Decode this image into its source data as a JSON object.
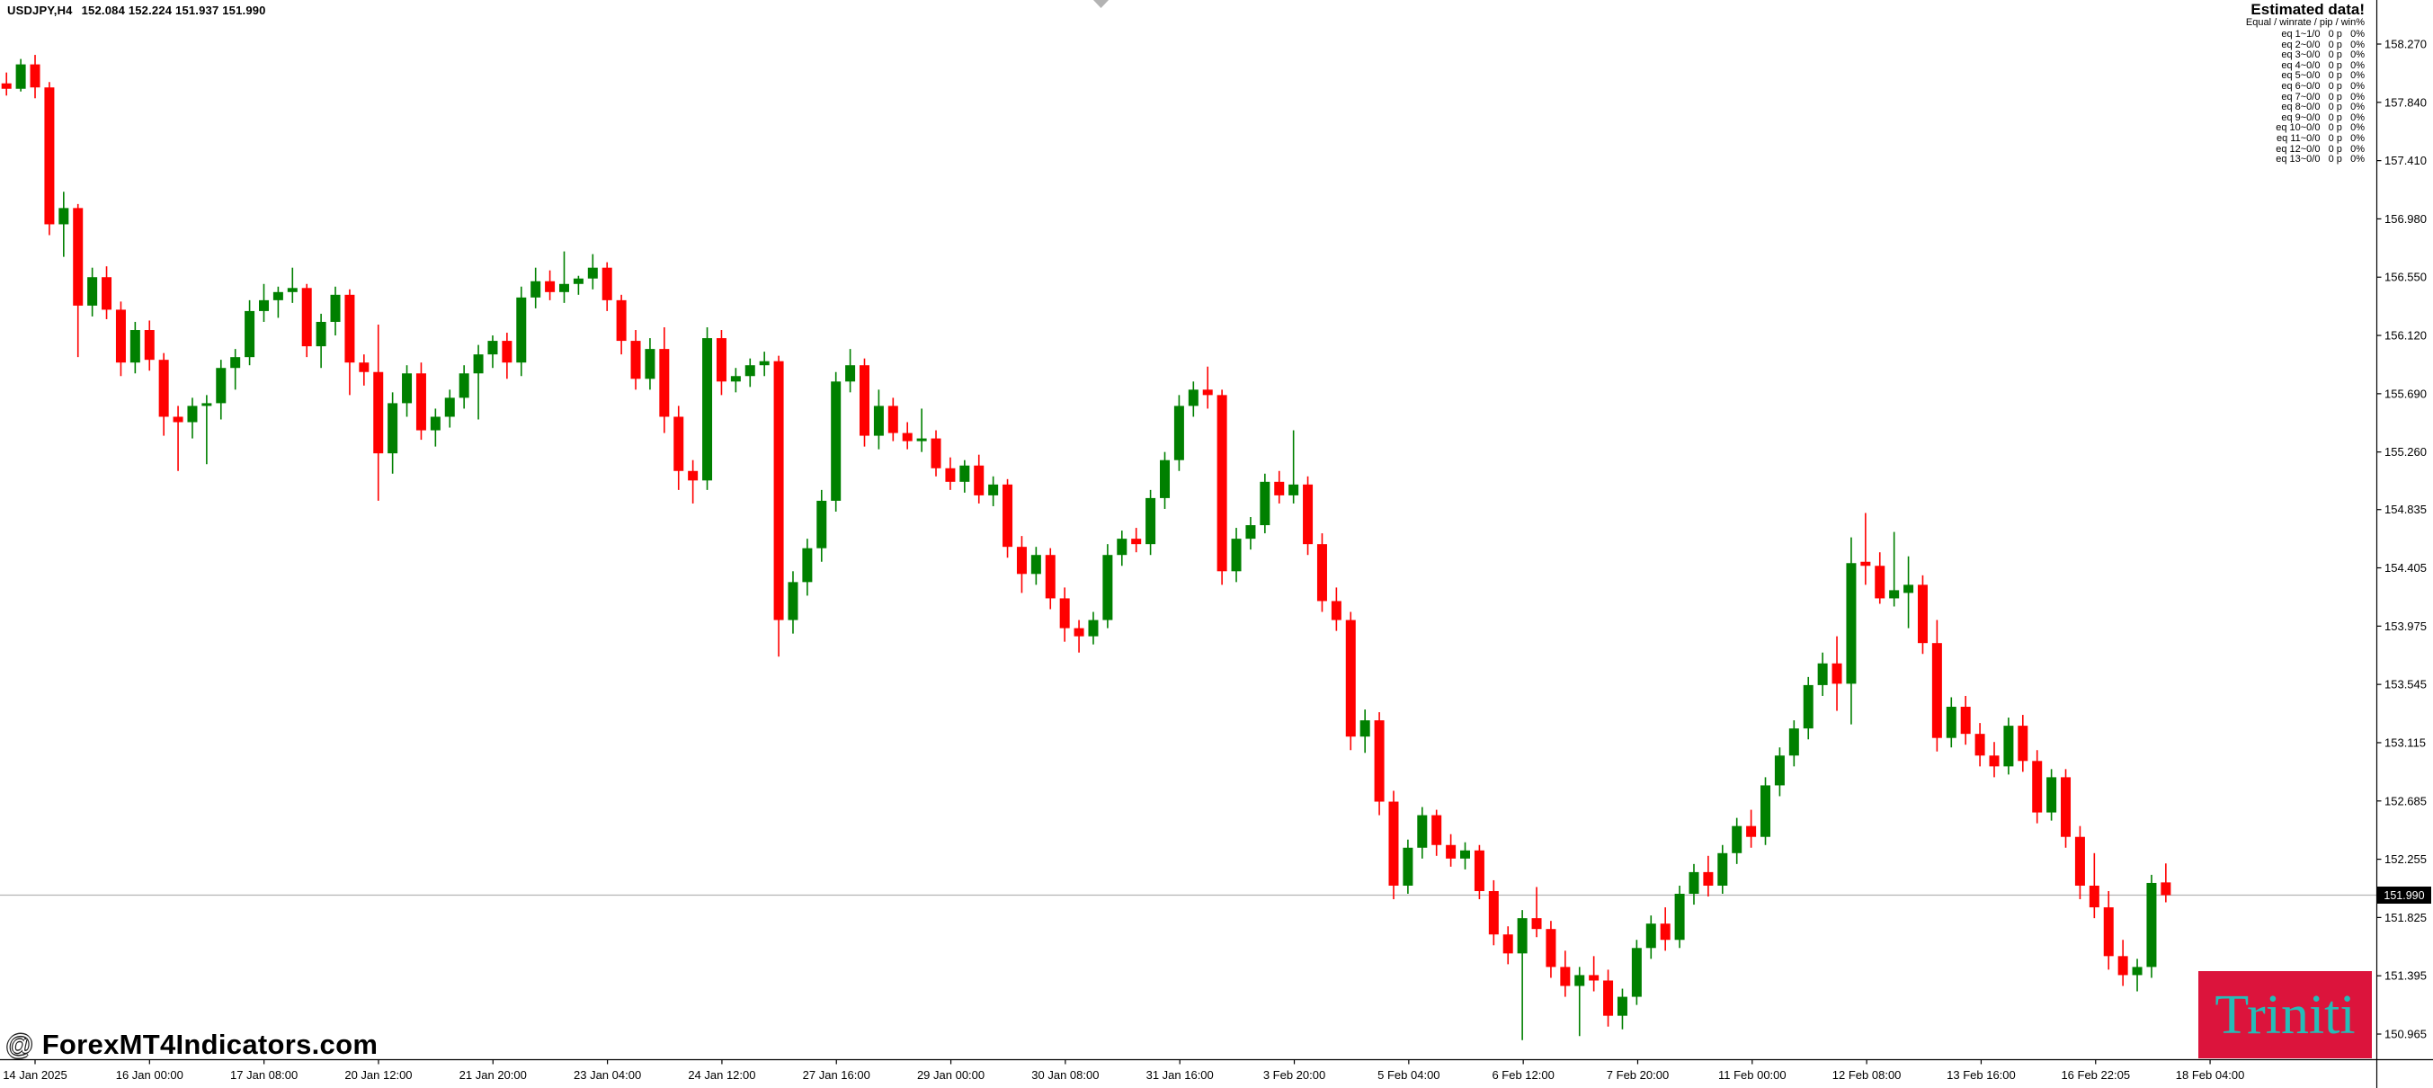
{
  "header": {
    "symbol": "USDJPY,H4",
    "quote": "152.084 152.224 151.937 151.990"
  },
  "estimated_panel": {
    "title": "Estimated data!",
    "subtitle": "Equal / winrate / pip / win%",
    "rows": [
      "eq 1~1/0   0 p   0%",
      "eq 2~0/0   0 p   0%",
      "eq 3~0/0   0 p   0%",
      "eq 4~0/0   0 p   0%",
      "eq 5~0/0   0 p   0%",
      "eq 6~0/0   0 p   0%",
      "eq 7~0/0   0 p   0%",
      "eq 8~0/0   0 p   0%",
      "eq 9~0/0   0 p   0%",
      "eq 10~0/0   0 p   0%",
      "eq 11~0/0   0 p   0%",
      "eq 12~0/0   0 p   0%",
      "eq 13~0/0   0 p   0%"
    ]
  },
  "price_axis": {
    "current": "151.990"
  },
  "watermark": {
    "at": "@ ",
    "text": "ForexMT4Indicators.com"
  },
  "logo": {
    "text": "Triniti",
    "bg": "#dc143c",
    "fg": "#25bdb8"
  },
  "chart_data": {
    "type": "candlestick",
    "title": "USDJPY H4 candlestick chart",
    "symbol": "USDJPY",
    "timeframe": "H4",
    "bid_price": 151.99,
    "current_bar": {
      "open": "152.084",
      "high": "152.224",
      "low": "151.937",
      "close": "151.990"
    },
    "price_axis_labels": [
      "158.270",
      "157.840",
      "157.410",
      "156.980",
      "156.550",
      "156.120",
      "155.690",
      "155.260",
      "154.835",
      "154.405",
      "153.975",
      "153.545",
      "153.115",
      "152.685",
      "152.255",
      "151.825",
      "151.395",
      "150.965"
    ],
    "time_axis_labels": [
      "14 Jan 2025",
      "16 Jan 00:00",
      "17 Jan 08:00",
      "20 Jan 12:00",
      "21 Jan 20:00",
      "23 Jan 04:00",
      "24 Jan 12:00",
      "27 Jan 16:00",
      "29 Jan 00:00",
      "30 Jan 08:00",
      "31 Jan 16:00",
      "3 Feb 20:00",
      "5 Feb 04:00",
      "6 Feb 12:00",
      "7 Feb 20:00",
      "11 Feb 00:00",
      "12 Feb 08:00",
      "13 Feb 16:00",
      "16 Feb 22:05",
      "18 Feb 04:00"
    ],
    "ylim": [
      150.78,
      158.6
    ],
    "grid": false,
    "colors": {
      "bull": "#008000",
      "bear": "#ff0000",
      "bid_line": "#b4b4b4",
      "axis": "#000000"
    },
    "candles": [
      [
        157.98,
        158.06,
        157.89,
        157.94
      ],
      [
        157.94,
        158.16,
        157.92,
        158.12
      ],
      [
        158.12,
        158.19,
        157.87,
        157.95
      ],
      [
        157.95,
        157.99,
        156.86,
        156.94
      ],
      [
        156.94,
        157.18,
        156.7,
        157.06
      ],
      [
        157.06,
        157.09,
        155.96,
        156.34
      ],
      [
        156.34,
        156.62,
        156.26,
        156.55
      ],
      [
        156.55,
        156.63,
        156.24,
        156.31
      ],
      [
        156.31,
        156.37,
        155.82,
        155.92
      ],
      [
        155.92,
        156.22,
        155.84,
        156.16
      ],
      [
        156.16,
        156.23,
        155.86,
        155.94
      ],
      [
        155.94,
        155.99,
        155.38,
        155.52
      ],
      [
        155.52,
        155.6,
        155.12,
        155.48
      ],
      [
        155.48,
        155.66,
        155.36,
        155.6
      ],
      [
        155.6,
        155.68,
        155.17,
        155.62
      ],
      [
        155.62,
        155.94,
        155.5,
        155.88
      ],
      [
        155.88,
        156.02,
        155.72,
        155.96
      ],
      [
        155.96,
        156.38,
        155.9,
        156.3
      ],
      [
        156.3,
        156.5,
        156.22,
        156.38
      ],
      [
        156.38,
        156.48,
        156.25,
        156.44
      ],
      [
        156.44,
        156.62,
        156.36,
        156.47
      ],
      [
        156.47,
        156.5,
        155.96,
        156.04
      ],
      [
        156.04,
        156.28,
        155.88,
        156.22
      ],
      [
        156.22,
        156.48,
        156.12,
        156.42
      ],
      [
        156.42,
        156.46,
        155.68,
        155.92
      ],
      [
        155.92,
        155.98,
        155.75,
        155.85
      ],
      [
        155.85,
        156.2,
        154.9,
        155.25
      ],
      [
        155.25,
        155.7,
        155.1,
        155.62
      ],
      [
        155.62,
        155.9,
        155.52,
        155.84
      ],
      [
        155.84,
        155.92,
        155.35,
        155.42
      ],
      [
        155.42,
        155.58,
        155.3,
        155.52
      ],
      [
        155.52,
        155.72,
        155.44,
        155.66
      ],
      [
        155.66,
        155.9,
        155.58,
        155.84
      ],
      [
        155.84,
        156.05,
        155.5,
        155.98
      ],
      [
        155.98,
        156.12,
        155.88,
        156.08
      ],
      [
        156.08,
        156.14,
        155.8,
        155.92
      ],
      [
        155.92,
        156.48,
        155.82,
        156.4
      ],
      [
        156.4,
        156.62,
        156.32,
        156.52
      ],
      [
        156.52,
        156.6,
        156.38,
        156.44
      ],
      [
        156.44,
        156.74,
        156.36,
        156.5
      ],
      [
        156.5,
        156.56,
        156.42,
        156.54
      ],
      [
        156.54,
        156.72,
        156.46,
        156.62
      ],
      [
        156.62,
        156.66,
        156.3,
        156.38
      ],
      [
        156.38,
        156.42,
        155.98,
        156.08
      ],
      [
        156.08,
        156.16,
        155.72,
        155.8
      ],
      [
        155.8,
        156.1,
        155.72,
        156.02
      ],
      [
        156.02,
        156.18,
        155.4,
        155.52
      ],
      [
        155.52,
        155.6,
        154.98,
        155.12
      ],
      [
        155.12,
        155.2,
        154.88,
        155.05
      ],
      [
        155.05,
        156.18,
        154.98,
        156.1
      ],
      [
        156.1,
        156.16,
        155.68,
        155.78
      ],
      [
        155.78,
        155.88,
        155.7,
        155.82
      ],
      [
        155.82,
        155.95,
        155.74,
        155.9
      ],
      [
        155.9,
        156.0,
        155.82,
        155.93
      ],
      [
        155.93,
        155.97,
        153.75,
        154.02
      ],
      [
        154.02,
        154.38,
        153.92,
        154.3
      ],
      [
        154.3,
        154.62,
        154.2,
        154.55
      ],
      [
        154.55,
        154.98,
        154.45,
        154.9
      ],
      [
        154.9,
        155.85,
        154.82,
        155.78
      ],
      [
        155.78,
        156.02,
        155.7,
        155.9
      ],
      [
        155.9,
        155.95,
        155.3,
        155.38
      ],
      [
        155.38,
        155.72,
        155.28,
        155.6
      ],
      [
        155.6,
        155.66,
        155.34,
        155.4
      ],
      [
        155.4,
        155.48,
        155.28,
        155.34
      ],
      [
        155.34,
        155.58,
        155.26,
        155.36
      ],
      [
        155.36,
        155.42,
        155.08,
        155.14
      ],
      [
        155.14,
        155.22,
        154.98,
        155.04
      ],
      [
        155.04,
        155.2,
        154.96,
        155.16
      ],
      [
        155.16,
        155.24,
        154.88,
        154.94
      ],
      [
        154.94,
        155.08,
        154.86,
        155.02
      ],
      [
        155.02,
        155.06,
        154.48,
        154.56
      ],
      [
        154.56,
        154.64,
        154.22,
        154.36
      ],
      [
        154.36,
        154.56,
        154.28,
        154.5
      ],
      [
        154.5,
        154.55,
        154.1,
        154.18
      ],
      [
        154.18,
        154.26,
        153.86,
        153.96
      ],
      [
        153.96,
        154.02,
        153.78,
        153.9
      ],
      [
        153.9,
        154.08,
        153.84,
        154.02
      ],
      [
        154.02,
        154.58,
        153.96,
        154.5
      ],
      [
        154.5,
        154.68,
        154.42,
        154.62
      ],
      [
        154.62,
        154.7,
        154.52,
        154.58
      ],
      [
        154.58,
        154.98,
        154.5,
        154.92
      ],
      [
        154.92,
        155.26,
        154.84,
        155.2
      ],
      [
        155.2,
        155.68,
        155.12,
        155.6
      ],
      [
        155.6,
        155.78,
        155.52,
        155.72
      ],
      [
        155.72,
        155.89,
        155.58,
        155.68
      ],
      [
        155.68,
        155.72,
        154.28,
        154.38
      ],
      [
        154.38,
        154.7,
        154.3,
        154.62
      ],
      [
        154.62,
        154.78,
        154.54,
        154.72
      ],
      [
        154.72,
        155.1,
        154.66,
        155.04
      ],
      [
        155.04,
        155.12,
        154.88,
        154.94
      ],
      [
        154.94,
        155.42,
        154.88,
        155.02
      ],
      [
        155.02,
        155.08,
        154.5,
        154.58
      ],
      [
        154.58,
        154.66,
        154.08,
        154.16
      ],
      [
        154.16,
        154.26,
        153.94,
        154.02
      ],
      [
        154.02,
        154.08,
        153.06,
        153.16
      ],
      [
        153.16,
        153.36,
        153.04,
        153.28
      ],
      [
        153.28,
        153.34,
        152.58,
        152.68
      ],
      [
        152.68,
        152.76,
        151.96,
        152.06
      ],
      [
        152.06,
        152.4,
        152.0,
        152.34
      ],
      [
        152.34,
        152.64,
        152.26,
        152.58
      ],
      [
        152.58,
        152.62,
        152.28,
        152.36
      ],
      [
        152.36,
        152.44,
        152.2,
        152.26
      ],
      [
        152.26,
        152.38,
        152.18,
        152.32
      ],
      [
        152.32,
        152.36,
        151.96,
        152.02
      ],
      [
        152.02,
        152.1,
        151.62,
        151.7
      ],
      [
        151.7,
        151.76,
        151.48,
        151.56
      ],
      [
        151.56,
        151.88,
        150.92,
        151.82
      ],
      [
        151.82,
        152.05,
        151.68,
        151.74
      ],
      [
        151.74,
        151.8,
        151.38,
        151.46
      ],
      [
        151.46,
        151.58,
        151.24,
        151.32
      ],
      [
        151.32,
        151.46,
        150.95,
        151.4
      ],
      [
        151.4,
        151.54,
        151.28,
        151.36
      ],
      [
        151.36,
        151.44,
        151.02,
        151.1
      ],
      [
        151.1,
        151.3,
        151.0,
        151.24
      ],
      [
        151.24,
        151.66,
        151.18,
        151.6
      ],
      [
        151.6,
        151.84,
        151.52,
        151.78
      ],
      [
        151.78,
        151.9,
        151.58,
        151.66
      ],
      [
        151.66,
        152.06,
        151.6,
        152.0
      ],
      [
        152.0,
        152.22,
        151.92,
        152.16
      ],
      [
        152.16,
        152.28,
        151.98,
        152.06
      ],
      [
        152.06,
        152.36,
        152.0,
        152.3
      ],
      [
        152.3,
        152.56,
        152.22,
        152.5
      ],
      [
        152.5,
        152.62,
        152.34,
        152.42
      ],
      [
        152.42,
        152.86,
        152.36,
        152.8
      ],
      [
        152.8,
        153.08,
        152.72,
        153.02
      ],
      [
        153.02,
        153.28,
        152.94,
        153.22
      ],
      [
        153.22,
        153.6,
        153.14,
        153.54
      ],
      [
        153.54,
        153.78,
        153.46,
        153.7
      ],
      [
        153.7,
        153.9,
        153.35,
        153.55
      ],
      [
        153.55,
        154.63,
        153.25,
        154.44
      ],
      [
        154.45,
        154.81,
        154.28,
        154.42
      ],
      [
        154.42,
        154.52,
        154.14,
        154.18
      ],
      [
        154.18,
        154.67,
        154.12,
        154.24
      ],
      [
        154.22,
        154.49,
        153.96,
        154.28
      ],
      [
        154.28,
        154.35,
        153.77,
        153.85
      ],
      [
        153.85,
        154.02,
        153.05,
        153.15
      ],
      [
        153.15,
        153.45,
        153.08,
        153.38
      ],
      [
        153.38,
        153.46,
        153.1,
        153.18
      ],
      [
        153.18,
        153.26,
        152.94,
        153.02
      ],
      [
        153.02,
        153.12,
        152.86,
        152.94
      ],
      [
        152.94,
        153.3,
        152.88,
        153.24
      ],
      [
        153.24,
        153.32,
        152.9,
        152.98
      ],
      [
        152.98,
        153.06,
        152.52,
        152.6
      ],
      [
        152.6,
        152.92,
        152.54,
        152.86
      ],
      [
        152.86,
        152.92,
        152.34,
        152.42
      ],
      [
        152.42,
        152.5,
        151.96,
        152.06
      ],
      [
        152.06,
        152.3,
        151.82,
        151.9
      ],
      [
        151.9,
        152.02,
        151.44,
        151.54
      ],
      [
        151.54,
        151.66,
        151.32,
        151.4
      ],
      [
        151.4,
        151.52,
        151.28,
        151.46
      ],
      [
        151.46,
        152.14,
        151.38,
        152.08
      ],
      [
        152.084,
        152.224,
        151.937,
        151.99
      ]
    ]
  }
}
